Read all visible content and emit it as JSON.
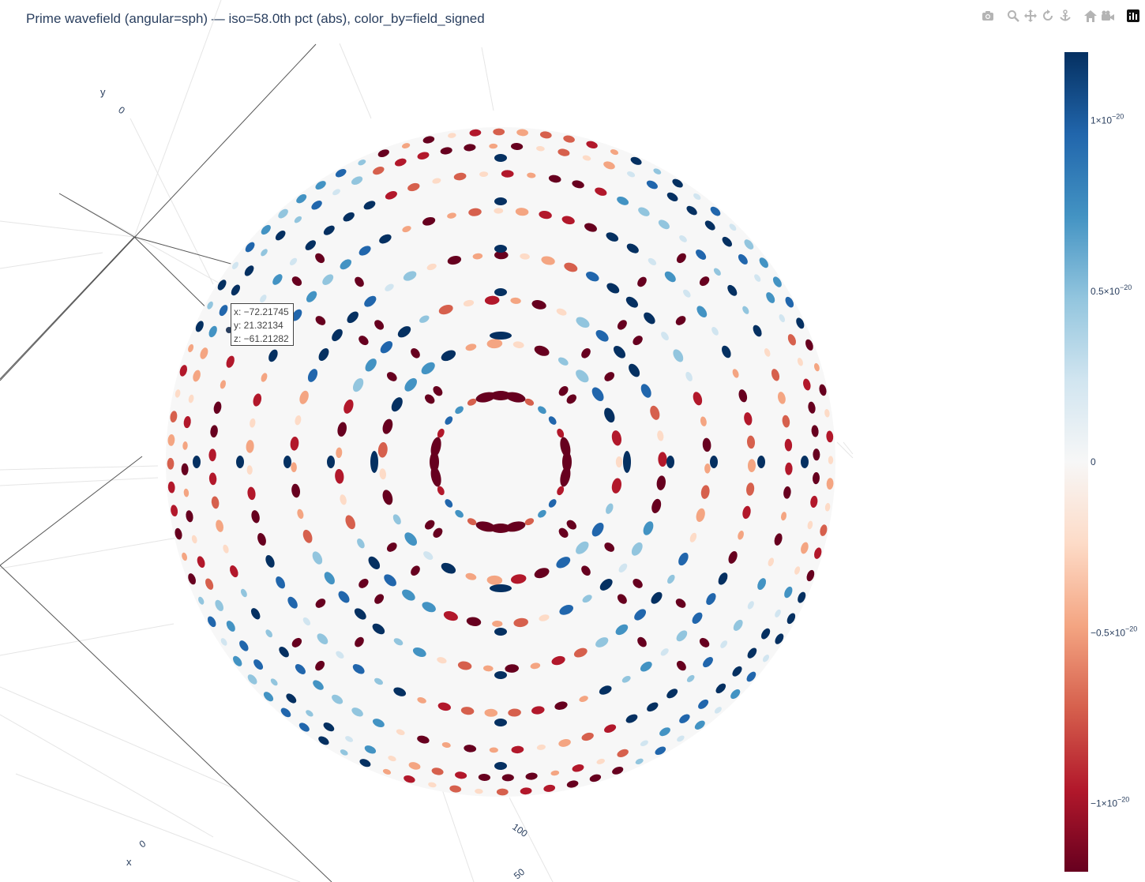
{
  "title": "Prime wavefield (angular=sph) — iso=58.0th pct (abs), color_by=field_signed",
  "modebar": {
    "icons": [
      "camera-icon",
      "zoom-icon",
      "pan-icon",
      "orbit-rotation-icon",
      "turntable-rotation-icon",
      "reset-camera-icon",
      "reset-camera-last-save-icon",
      "plotly-logo-icon"
    ]
  },
  "hover": {
    "x": "x: −72.21745",
    "y": "y: 21.32134",
    "z": "z: −61.21282"
  },
  "chart_data": {
    "type": "scatter",
    "subtype": "3d-isosurface",
    "title": "Prime wavefield (angular=sph) — iso=58.0th pct (abs), color_by=field_signed",
    "axes": {
      "x": {
        "title": "x",
        "ticks": [
          "0"
        ]
      },
      "y": {
        "title": "y",
        "ticks": [
          "0"
        ]
      },
      "z": {
        "title": "",
        "ticks": [
          "100",
          "50"
        ]
      }
    },
    "colorscale": {
      "name": "RdBu",
      "colors": [
        "#67001f",
        "#b2182b",
        "#d6604d",
        "#f4a582",
        "#fddbc7",
        "#f7f7f7",
        "#d1e5f0",
        "#92c5de",
        "#4393c3",
        "#2166ac",
        "#053061"
      ],
      "cmin": -1.2e-20,
      "cmax": 1.2e-20,
      "tick_values": [
        1e-20,
        5e-21,
        0,
        -5e-21,
        -1e-20
      ],
      "tick_labels": [
        {
          "mant": "1×10",
          "exp": "−20"
        },
        {
          "mant": "0.5×10",
          "exp": "−20"
        },
        {
          "mant": "0",
          "exp": ""
        },
        {
          "mant": "−0.5×10",
          "exp": "−20"
        },
        {
          "mant": "−1×10",
          "exp": "−20"
        }
      ]
    },
    "hover_point": {
      "x": -72.21745,
      "y": 21.32134,
      "z": -61.21282
    }
  }
}
